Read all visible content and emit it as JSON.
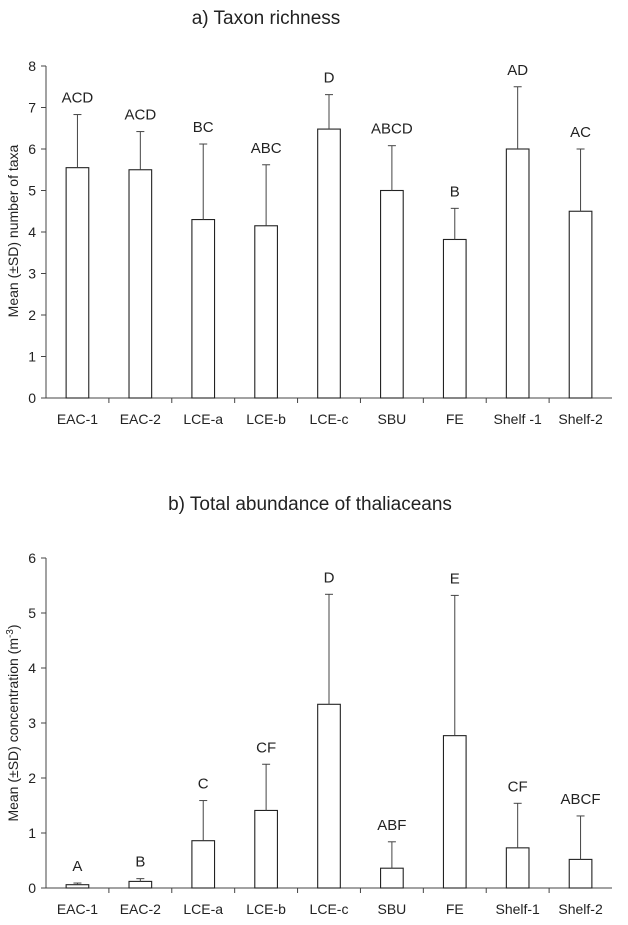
{
  "chart_data": [
    {
      "type": "bar",
      "title": "a) Taxon richness",
      "xlabel": "",
      "ylabel": "Mean (±SD) number of taxa",
      "ylim": [
        0,
        8
      ],
      "yticks": [
        0,
        1,
        2,
        3,
        4,
        5,
        6,
        7,
        8
      ],
      "grid": false,
      "categories": [
        "EAC-1",
        "EAC-2",
        "LCE-a",
        "LCE-b",
        "LCE-c",
        "SBU",
        "FE",
        "Shelf -1",
        "Shelf-2"
      ],
      "values": [
        5.55,
        5.5,
        4.3,
        4.15,
        6.48,
        5.0,
        3.82,
        6.0,
        4.5
      ],
      "sd": [
        1.28,
        0.92,
        1.82,
        1.47,
        0.83,
        1.08,
        0.75,
        1.5,
        1.5
      ],
      "letters": [
        "ACD",
        "ACD",
        "BC",
        "ABC",
        "D",
        "ABCD",
        "B",
        "AD",
        "AC"
      ]
    },
    {
      "type": "bar",
      "title": "b) Total abundance of thaliaceans",
      "xlabel": "",
      "ylabel": "Mean (±SD) concentration (m",
      "ylabel_sup": "-3",
      "ylabel_end": ")",
      "ylim": [
        0,
        6
      ],
      "yticks": [
        0,
        1,
        2,
        3,
        4,
        5,
        6
      ],
      "grid": false,
      "categories": [
        "EAC-1",
        "EAC-2",
        "LCE-a",
        "LCE-b",
        "LCE-c",
        "SBU",
        "FE",
        "Shelf-1",
        "Shelf-2"
      ],
      "values": [
        0.06,
        0.12,
        0.86,
        1.41,
        3.34,
        0.36,
        2.77,
        0.73,
        0.52
      ],
      "sd": [
        0.03,
        0.05,
        0.73,
        0.84,
        2.0,
        0.48,
        2.55,
        0.81,
        0.79
      ],
      "letters": [
        "A",
        "B",
        "C",
        "CF",
        "D",
        "ABF",
        "E",
        "CF",
        "ABCF"
      ]
    }
  ]
}
